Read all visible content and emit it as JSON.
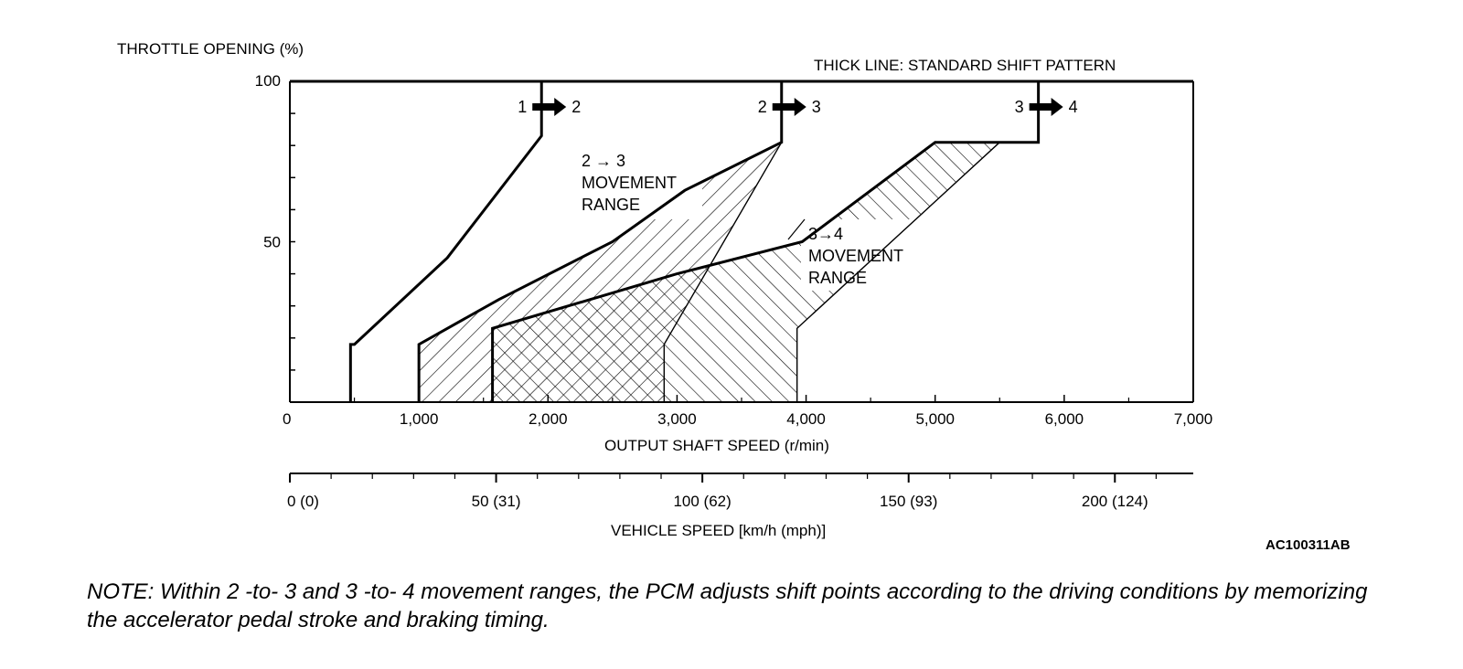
{
  "chart_data": {
    "type": "line",
    "title": "THICK LINE: STANDARD SHIFT PATTERN",
    "ylabel": "THROTTLE OPENING (%)",
    "xlabel": "OUTPUT SHAFT SPEED (r/min)",
    "xlim": [
      0,
      7000
    ],
    "ylim": [
      0,
      100
    ],
    "x_ticks": [
      "0",
      "1,000",
      "2,000",
      "3,000",
      "4,000",
      "5,000",
      "6,000",
      "7,000"
    ],
    "y_ticks": [
      "100",
      "50"
    ],
    "secondary_axis": {
      "label": "VEHICLE SPEED [km/h (mph)]",
      "ticks": [
        "0 (0)",
        "50 (31)",
        "100 (62)",
        "150 (93)",
        "200 (124)"
      ],
      "tick_values_kmh": [
        0,
        50,
        100,
        150,
        200
      ],
      "range_kmh": [
        0,
        219
      ]
    },
    "series": [
      {
        "name": "1 → 2",
        "style": "thick",
        "x": [
          470,
          470,
          500,
          1220,
          1950,
          1950
        ],
        "y": [
          0,
          18,
          18,
          45,
          83,
          100
        ]
      },
      {
        "name": "2 → 3",
        "style": "thick",
        "x": [
          1000,
          1000,
          1620,
          2500,
          3060,
          3810,
          3810
        ],
        "y": [
          0,
          18,
          32,
          50,
          66,
          81,
          100
        ]
      },
      {
        "name": "3 → 4",
        "style": "thick",
        "x": [
          1570,
          1570,
          3000,
          3970,
          5000,
          5800,
          5800
        ],
        "y": [
          0,
          23,
          40,
          50,
          81,
          81,
          100
        ]
      },
      {
        "name": "2 → 3 range lower bound",
        "style": "thin",
        "x": [
          1600,
          2900,
          2900,
          3810
        ],
        "y": [
          0,
          0,
          18,
          81
        ]
      },
      {
        "name": "3 → 4 range lower bound",
        "style": "thin",
        "x": [
          2900,
          3930,
          3930,
          5500
        ],
        "y": [
          0,
          0,
          23,
          81
        ]
      }
    ],
    "shift_labels": [
      {
        "from": "1",
        "to": "2"
      },
      {
        "from": "2",
        "to": "3"
      },
      {
        "from": "3",
        "to": "4"
      }
    ],
    "annotations": [
      {
        "lines": [
          "2 → 3",
          "MOVEMENT",
          "RANGE"
        ]
      },
      {
        "lines": [
          "3→4",
          "MOVEMENT",
          "RANGE"
        ]
      }
    ]
  },
  "figure_code": "AC100311AB",
  "note": "NOTE: Within 2 -to- 3 and 3 -to- 4 movement ranges, the PCM adjusts shift points according to the driving conditions by memorizing the accelerator pedal stroke and braking timing."
}
